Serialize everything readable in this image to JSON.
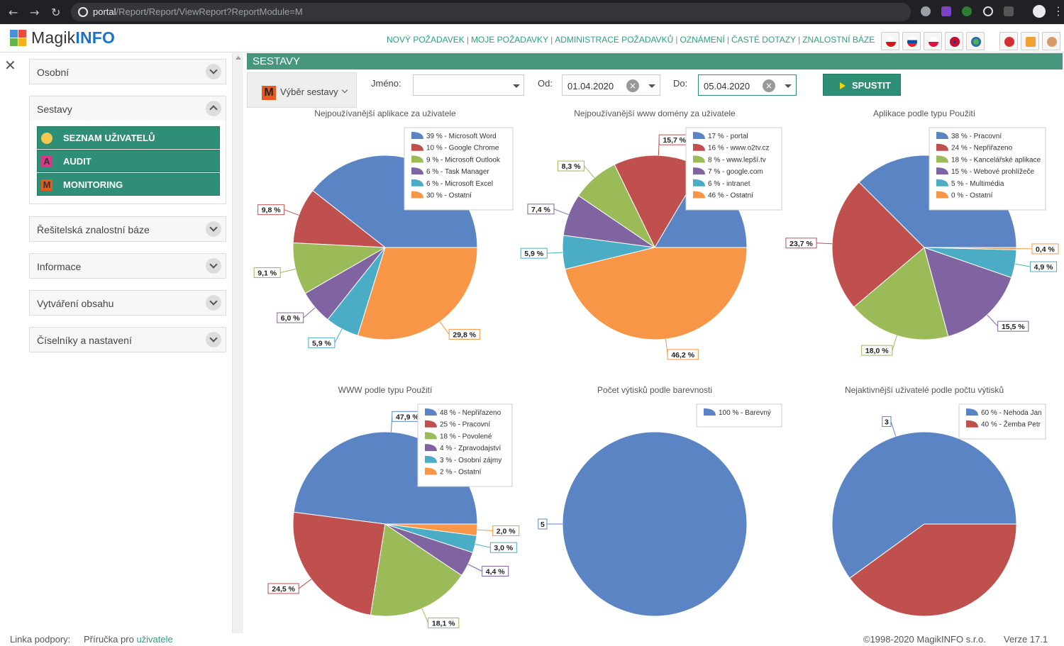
{
  "browser": {
    "url_host": "portal",
    "url_path": "/Report/Report/ViewReport?ReportModule=M"
  },
  "app": {
    "logo_part1": "Magik",
    "logo_part2": "INFO",
    "nav": [
      "NOVÝ POŽADAVEK",
      "MOJE POŽADAVKY",
      "ADMINISTRACE POŽADAVKŮ",
      "OZNÁMENÍ",
      "ČASTÉ DOTAZY",
      "ZNALOSTNÍ BÁZE"
    ]
  },
  "sidebar": {
    "sections": [
      {
        "label": "Osobní"
      },
      {
        "label": "Sestavy"
      },
      {
        "label": "Řešitelská znalostní báze"
      },
      {
        "label": "Informace"
      },
      {
        "label": "Vytváření obsahu"
      },
      {
        "label": "Číselníky a nastavení"
      }
    ],
    "submenu": [
      {
        "label": "SEZNAM UŽIVATELŮ"
      },
      {
        "label": "AUDIT",
        "icon_letter": "A"
      },
      {
        "label": "MONITORING",
        "icon_letter": "M"
      }
    ]
  },
  "section_title": "SESTAVY",
  "filter": {
    "report_icon_letter": "M",
    "report_select_label": "Výběr sestavy",
    "name_label": "Jméno:",
    "name_value": "",
    "from_label": "Od:",
    "from_value": "01.04.2020",
    "to_label": "Do:",
    "to_value": "05.04.2020",
    "run_label": "SPUSTIT"
  },
  "palette": [
    "#5b84c4",
    "#c0504d",
    "#9bbb59",
    "#8064a2",
    "#4bacc6",
    "#f79646"
  ],
  "chart_data": [
    {
      "type": "pie",
      "title": "Nejpoužívanější aplikace za uživatele",
      "labels": [
        "Microsoft Word",
        "Google Chrome",
        "Microsoft Outlook",
        "Task Manager",
        "Microsoft Excel",
        "Ostatní"
      ],
      "legend": [
        "39 % - Microsoft Word",
        "10 % - Google Chrome",
        "9 % - Microsoft Outlook",
        "6 % - Task Manager",
        "6 % - Microsoft Excel",
        "30 % - Ostatní"
      ],
      "values": [
        39.4,
        9.8,
        9.1,
        6.0,
        5.9,
        29.8
      ],
      "data_labels": [
        null,
        "9,8 %",
        "9,1 %",
        "6,0 %",
        "5,9 %",
        "29,8 %"
      ]
    },
    {
      "type": "pie",
      "title": "Nejpoužívanější www domény za uživatele",
      "labels": [
        "portal",
        "www.o2tv.cz",
        "www.lepší.tv",
        "google.com",
        "intranet",
        "Ostatní"
      ],
      "legend": [
        "17 % - portal",
        "16 % - www.o2tv.cz",
        "8 % - www.lepší.tv",
        "7 % - google.com",
        "6 % - intranet",
        "46 % - Ostatní"
      ],
      "values": [
        16.5,
        15.7,
        8.3,
        7.4,
        5.9,
        46.2
      ],
      "data_labels": [
        null,
        "15,7 %",
        "8,3 %",
        "7,4 %",
        "5,9 %",
        "46,2 %"
      ]
    },
    {
      "type": "pie",
      "title": "Aplikace podle typu Použití",
      "labels": [
        "Pracovní",
        "Nepřiřazeno",
        "Kancelářské aplikace",
        "Webové prohlížeče",
        "Multimédia",
        "Ostatní"
      ],
      "legend": [
        "38 % - Pracovní",
        "24 % - Nepřiřazeno",
        "18 % - Kancelářské aplikace",
        "15 % - Webové prohlížeče",
        "5 % - Multimédia",
        "0 % - Ostatní"
      ],
      "values": [
        37.5,
        23.7,
        18.0,
        15.5,
        4.9,
        0.4
      ],
      "data_labels": [
        null,
        "23,7 %",
        "18,0 %",
        "15,5 %",
        "4,9 %",
        "0,4 %"
      ]
    },
    {
      "type": "pie",
      "title": "WWW podle typu Použití",
      "labels": [
        "Nepřiřazeno",
        "Pracovní",
        "Povolené",
        "Zpravodajství",
        "Osobní zájmy",
        "Ostatní"
      ],
      "legend": [
        "48 % - Nepřiřazeno",
        "25 % - Pracovní",
        "18 % - Povolené",
        "4 % - Zpravodajství",
        "3 % - Osobní zájmy",
        "2 % - Ostatní"
      ],
      "values": [
        47.9,
        24.5,
        18.1,
        4.4,
        3.0,
        2.0
      ],
      "data_labels": [
        "47,9 %",
        "24,5 %",
        "18,1 %",
        "4,4 %",
        "3,0 %",
        "2,0 %"
      ]
    },
    {
      "type": "pie",
      "title": "Počet výtisků podle barevnosti",
      "labels": [
        "Barevný"
      ],
      "legend": [
        "100 % - Barevný"
      ],
      "values": [
        5
      ],
      "data_labels": [
        "5"
      ]
    },
    {
      "type": "pie",
      "title": "Nejaktivnější uživatelé podle počtu výtisků",
      "labels": [
        "Nehoda Jan",
        "Žemba Petr"
      ],
      "legend": [
        "60 % - Nehoda Jan",
        "40 % - Žemba Petr"
      ],
      "values": [
        3,
        2
      ],
      "data_labels": [
        "3",
        null
      ]
    }
  ],
  "footer": {
    "support_label": "Linka podpory:",
    "manual_prefix": "Příručka pro",
    "manual_link": "uživatele",
    "copyright": "©1998-2020 MagikINFO s.r.o.",
    "version": "Verze 17.1"
  }
}
